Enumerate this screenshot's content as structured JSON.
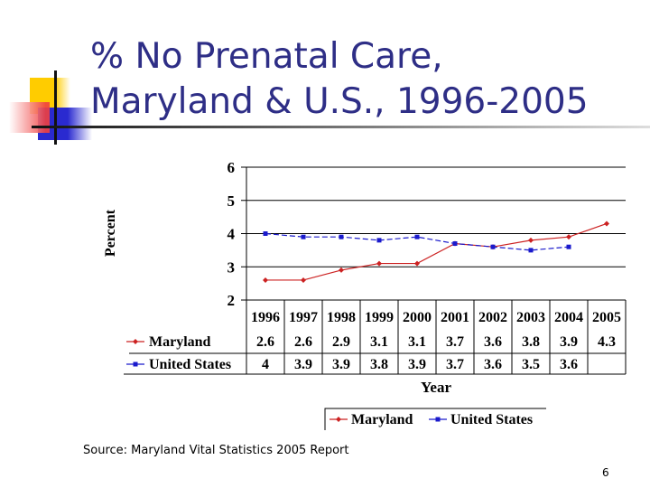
{
  "slide": {
    "title_line1": "% No Prenatal Care,",
    "title_line2": "Maryland & U.S., 1996-2005",
    "source": "Source:  Maryland Vital Statistics 2005 Report",
    "page_number": "6"
  },
  "chart_data": {
    "type": "line",
    "title": "",
    "xlabel": "Year",
    "ylabel": "Percent",
    "ylim": [
      2,
      6
    ],
    "yticks": [
      "2",
      "3",
      "4",
      "5",
      "6"
    ],
    "grid": true,
    "legend_position": "bottom",
    "categories": [
      "1996",
      "1997",
      "1998",
      "1999",
      "2000",
      "2001",
      "2002",
      "2003",
      "2004",
      "2005"
    ],
    "series": [
      {
        "name": "Maryland",
        "color": "#cc2222",
        "marker": "diamond",
        "values": [
          2.6,
          2.6,
          2.9,
          3.1,
          3.1,
          3.7,
          3.6,
          3.8,
          3.9,
          4.3
        ],
        "labels": [
          "2.6",
          "2.6",
          "2.9",
          "3.1",
          "3.1",
          "3.7",
          "3.6",
          "3.8",
          "3.9",
          "4.3"
        ]
      },
      {
        "name": "United States",
        "color": "#1a1acc",
        "marker": "square",
        "values": [
          4,
          3.9,
          3.9,
          3.8,
          3.9,
          3.7,
          3.6,
          3.5,
          3.6,
          null
        ],
        "labels": [
          "4",
          "3.9",
          "3.9",
          "3.8",
          "3.9",
          "3.7",
          "3.6",
          "3.5",
          "3.6",
          ""
        ]
      }
    ]
  }
}
